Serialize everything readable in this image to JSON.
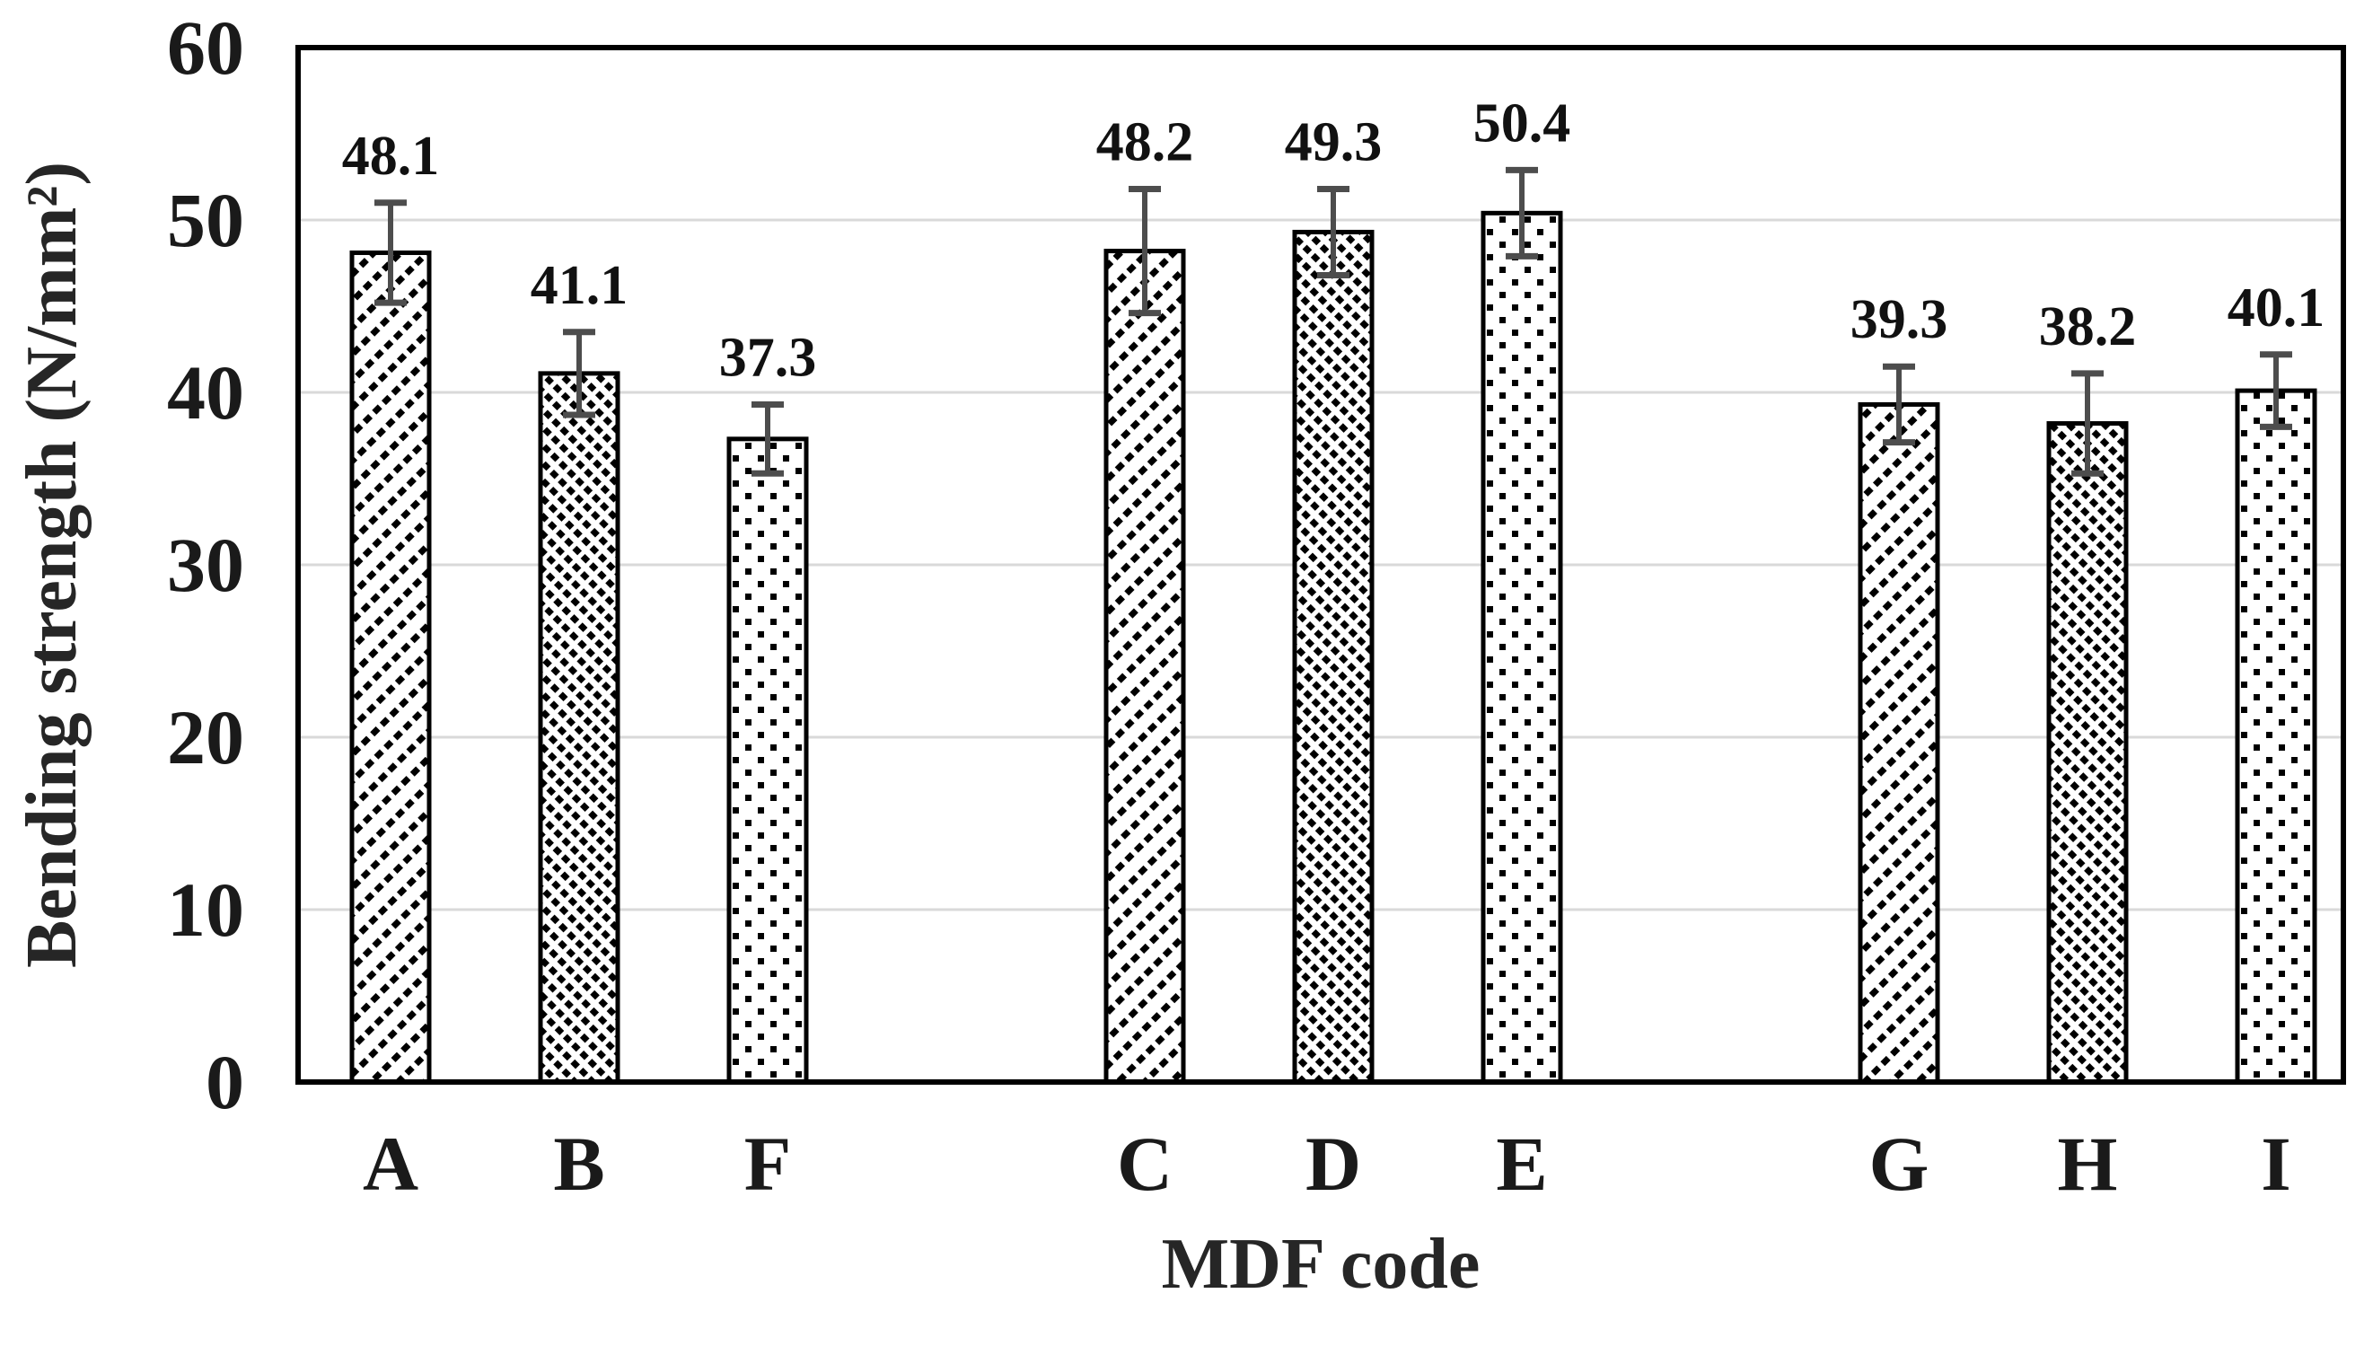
{
  "chart_data": {
    "type": "bar",
    "title": "",
    "xlabel": "MDF code",
    "ylabel": "Bending strength  (N/mm²)",
    "ylim": [
      0,
      60
    ],
    "yticks": [
      0,
      10,
      20,
      30,
      40,
      50,
      60
    ],
    "grid": "horizontal-light-gray",
    "legend": "none",
    "categories": [
      "A",
      "B",
      "F",
      "C",
      "D",
      "E",
      "G",
      "H",
      "I"
    ],
    "groups": [
      [
        "A",
        "B",
        "F"
      ],
      [
        "C",
        "D",
        "E"
      ],
      [
        "G",
        "H",
        "I"
      ]
    ],
    "values": [
      48.1,
      41.1,
      37.3,
      48.2,
      49.3,
      50.4,
      39.3,
      38.2,
      40.1
    ],
    "value_labels": [
      "48.1",
      "41.1",
      "37.3",
      "48.2",
      "49.3",
      "50.4",
      "39.3",
      "38.2",
      "40.1"
    ],
    "errors": [
      2.9,
      2.4,
      2.0,
      3.6,
      2.5,
      2.5,
      2.2,
      2.9,
      2.1
    ],
    "bar_patterns": [
      "diag-up",
      "diag-down",
      "dots",
      "diag-up",
      "diag-down",
      "dots",
      "diag-up",
      "diag-down",
      "dots"
    ],
    "colors": {
      "background": "#ffffff",
      "bar_fill": "#ffffff",
      "bar_stroke": "#000000",
      "hatch": "#000000",
      "error_bar": "#4d4d4d",
      "gridline": "#d9d9d9",
      "frame": "#000000",
      "tick_text": "#1a1a1a",
      "value_text": "#111111",
      "axis_title_text": "#262626"
    }
  }
}
